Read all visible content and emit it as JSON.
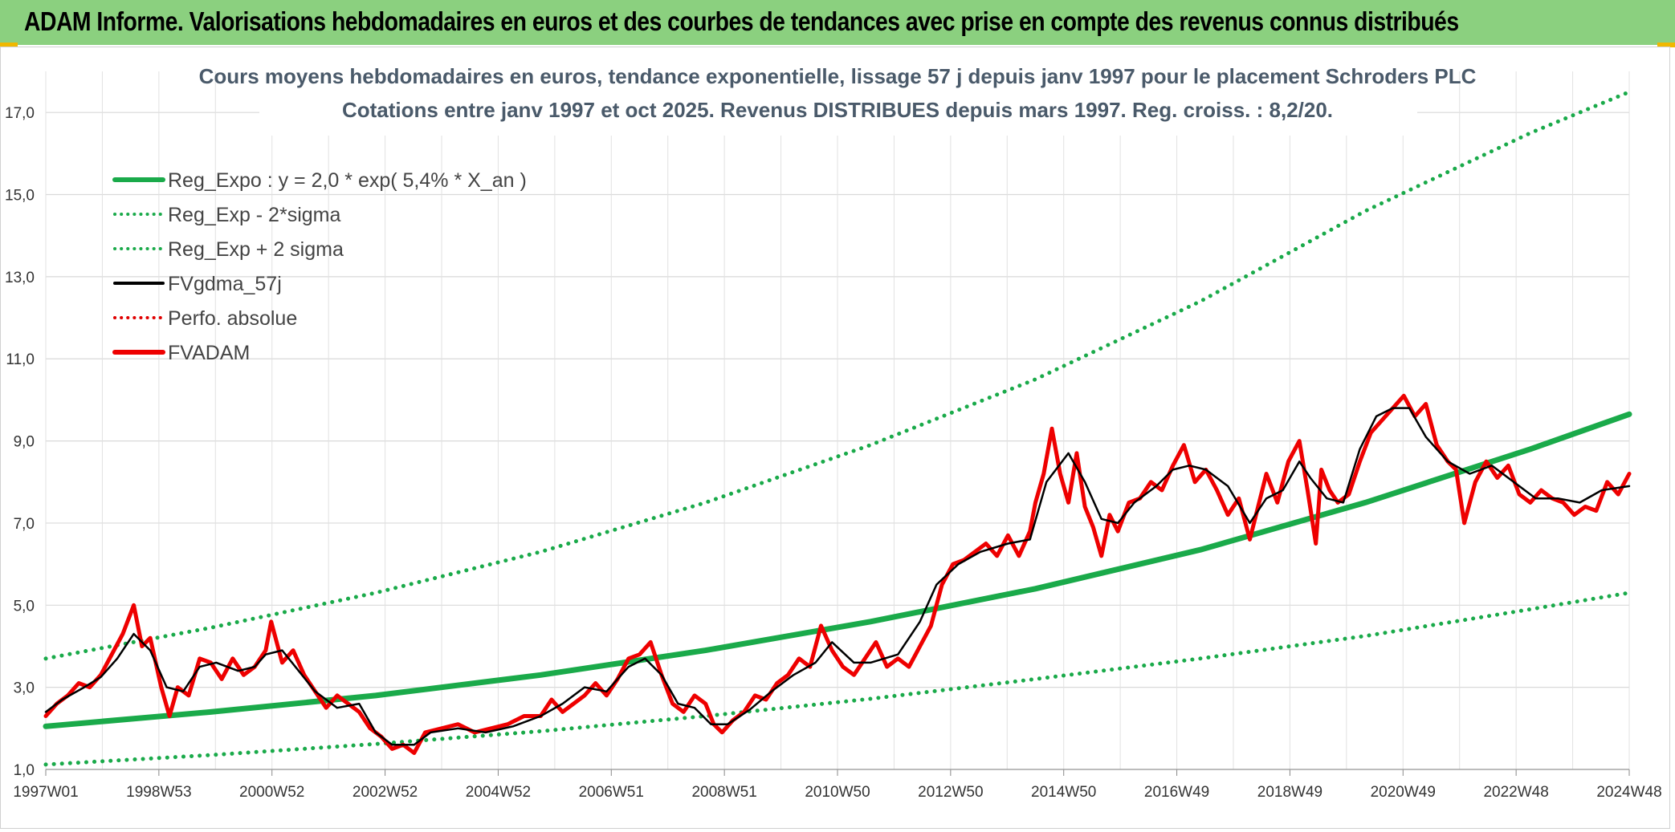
{
  "header": {
    "title": "ADAM Informe. Valorisations hebdomadaires en euros et des courbes de tendances avec prise en compte des revenus connus distribués"
  },
  "chart_data": {
    "type": "line",
    "title_lines": [
      "Cours moyens hebdomadaires en euros, tendance exponentielle, lissage 57 j depuis janv 1997 pour le placement Schroders PLC",
      "Cotations entre janv 1997 et oct 2025. Revenus DISTRIBUES depuis mars 1997. Reg. croiss. : 8,2/20."
    ],
    "x_tick_labels": [
      "1997W01",
      "1998W53",
      "2000W52",
      "2002W52",
      "2004W52",
      "2006W51",
      "2008W51",
      "2010W50",
      "2012W50",
      "2014W50",
      "2016W49",
      "2018W49",
      "2020W49",
      "2022W48",
      "2024W48"
    ],
    "xlim": [
      1997.0,
      2025.8
    ],
    "ylim": [
      1.0,
      18.0
    ],
    "y_ticks": [
      "1,0",
      "3,0",
      "5,0",
      "7,0",
      "9,0",
      "11,0",
      "13,0",
      "15,0",
      "17,0"
    ],
    "y_tick_values": [
      1,
      3,
      5,
      7,
      9,
      11,
      13,
      15,
      17
    ],
    "grid": true,
    "legend_position": "top-left",
    "series": [
      {
        "name": "Reg_Expo : y = 2,0 * exp( 5,4% *  X_an )",
        "style": "solid-thick",
        "color": "#1aaa4a",
        "x": [
          1997.0,
          2000.0,
          2003.0,
          2006.0,
          2009.0,
          2012.0,
          2015.0,
          2018.0,
          2021.0,
          2024.0,
          2025.8
        ],
        "values": [
          2.05,
          2.4,
          2.8,
          3.3,
          3.9,
          4.6,
          5.4,
          6.35,
          7.5,
          8.8,
          9.65
        ]
      },
      {
        "name": "Reg_Exp - 2*sigma",
        "style": "dotted",
        "color": "#1aaa4a",
        "x": [
          1997.0,
          2000.0,
          2003.0,
          2006.0,
          2009.0,
          2012.0,
          2015.0,
          2018.0,
          2021.0,
          2024.0,
          2025.8
        ],
        "values": [
          1.12,
          1.35,
          1.62,
          1.93,
          2.3,
          2.72,
          3.2,
          3.7,
          4.25,
          4.9,
          5.3
        ]
      },
      {
        "name": "Reg_Exp + 2 sigma",
        "style": "dotted",
        "color": "#1aaa4a",
        "x": [
          1997.0,
          2000.0,
          2003.0,
          2006.0,
          2009.0,
          2012.0,
          2015.0,
          2018.0,
          2021.0,
          2024.0,
          2025.8
        ],
        "values": [
          3.7,
          4.45,
          5.3,
          6.3,
          7.5,
          8.9,
          10.5,
          12.4,
          14.6,
          16.5,
          17.5
        ]
      },
      {
        "name": "FVgdma_57j",
        "style": "solid",
        "color": "#000000",
        "x": [
          1997.0,
          1997.3,
          1997.7,
          1998.0,
          1998.3,
          1998.6,
          1998.9,
          1999.2,
          1999.5,
          1999.8,
          2000.1,
          2000.5,
          2000.8,
          2001.0,
          2001.3,
          2001.6,
          2001.9,
          2002.3,
          2002.7,
          2003.0,
          2003.3,
          2003.7,
          2004.0,
          2004.5,
          2005.0,
          2005.5,
          2006.0,
          2006.4,
          2006.8,
          2007.2,
          2007.6,
          2007.9,
          2008.2,
          2008.5,
          2008.8,
          2009.1,
          2009.4,
          2009.8,
          2010.2,
          2010.6,
          2011.0,
          2011.3,
          2011.7,
          2012.0,
          2012.5,
          2012.9,
          2013.2,
          2013.6,
          2014.0,
          2014.5,
          2014.9,
          2015.2,
          2015.6,
          2015.9,
          2016.2,
          2016.5,
          2016.8,
          2017.2,
          2017.5,
          2017.8,
          2018.1,
          2018.5,
          2018.9,
          2019.2,
          2019.5,
          2019.8,
          2020.0,
          2020.3,
          2020.6,
          2020.9,
          2021.2,
          2021.5,
          2021.8,
          2022.1,
          2022.5,
          2022.9,
          2023.3,
          2023.7,
          2024.1,
          2024.5,
          2024.9,
          2025.3,
          2025.8
        ],
        "values": [
          2.4,
          2.7,
          3.0,
          3.25,
          3.7,
          4.3,
          3.9,
          3.0,
          2.9,
          3.5,
          3.6,
          3.4,
          3.5,
          3.8,
          3.9,
          3.4,
          2.9,
          2.5,
          2.6,
          1.9,
          1.6,
          1.6,
          1.9,
          2.0,
          1.9,
          2.05,
          2.3,
          2.6,
          3.0,
          2.9,
          3.5,
          3.7,
          3.3,
          2.6,
          2.5,
          2.1,
          2.1,
          2.45,
          2.9,
          3.3,
          3.6,
          4.1,
          3.6,
          3.6,
          3.8,
          4.6,
          5.5,
          6.0,
          6.3,
          6.5,
          6.6,
          8.0,
          8.7,
          8.0,
          7.1,
          7.0,
          7.5,
          7.9,
          8.3,
          8.4,
          8.3,
          7.9,
          7.0,
          7.6,
          7.8,
          8.5,
          8.1,
          7.6,
          7.5,
          8.8,
          9.6,
          9.8,
          9.8,
          9.1,
          8.5,
          8.2,
          8.4,
          8.0,
          7.6,
          7.6,
          7.5,
          7.8,
          7.9
        ]
      },
      {
        "name": "Perfo. absolue",
        "style": "dotted",
        "color": "#e00000",
        "x": [],
        "values": []
      },
      {
        "name": "FVADAM",
        "style": "solid-thick",
        "color": "#ee0000",
        "x": [
          1997.0,
          1997.2,
          1997.4,
          1997.6,
          1997.8,
          1998.0,
          1998.2,
          1998.4,
          1998.6,
          1998.75,
          1998.9,
          1999.1,
          1999.25,
          1999.4,
          1999.6,
          1999.8,
          2000.0,
          2000.2,
          2000.4,
          2000.6,
          2000.8,
          2001.0,
          2001.1,
          2001.3,
          2001.5,
          2001.7,
          2001.9,
          2002.1,
          2002.3,
          2002.5,
          2002.7,
          2002.9,
          2003.1,
          2003.3,
          2003.5,
          2003.7,
          2003.9,
          2004.2,
          2004.5,
          2004.8,
          2005.1,
          2005.4,
          2005.7,
          2006.0,
          2006.2,
          2006.4,
          2006.6,
          2006.8,
          2007.0,
          2007.2,
          2007.4,
          2007.6,
          2007.8,
          2008.0,
          2008.2,
          2008.4,
          2008.6,
          2008.8,
          2009.0,
          2009.15,
          2009.3,
          2009.5,
          2009.7,
          2009.9,
          2010.1,
          2010.3,
          2010.5,
          2010.7,
          2010.9,
          2011.1,
          2011.3,
          2011.5,
          2011.7,
          2011.9,
          2012.1,
          2012.3,
          2012.5,
          2012.7,
          2012.9,
          2013.1,
          2013.3,
          2013.5,
          2013.7,
          2013.9,
          2014.1,
          2014.3,
          2014.5,
          2014.7,
          2014.9,
          2015.0,
          2015.15,
          2015.3,
          2015.45,
          2015.6,
          2015.75,
          2015.9,
          2016.05,
          2016.2,
          2016.35,
          2016.5,
          2016.7,
          2016.9,
          2017.1,
          2017.3,
          2017.5,
          2017.7,
          2017.9,
          2018.1,
          2018.3,
          2018.5,
          2018.7,
          2018.9,
          2019.05,
          2019.2,
          2019.4,
          2019.6,
          2019.8,
          2019.95,
          2020.1,
          2020.2,
          2020.35,
          2020.5,
          2020.7,
          2020.9,
          2021.1,
          2021.3,
          2021.5,
          2021.7,
          2021.9,
          2022.1,
          2022.3,
          2022.5,
          2022.65,
          2022.8,
          2023.0,
          2023.2,
          2023.4,
          2023.6,
          2023.8,
          2024.0,
          2024.2,
          2024.4,
          2024.6,
          2024.8,
          2025.0,
          2025.2,
          2025.4,
          2025.6,
          2025.8
        ],
        "values": [
          2.3,
          2.6,
          2.8,
          3.1,
          3.0,
          3.3,
          3.8,
          4.3,
          5.0,
          4.0,
          4.2,
          3.0,
          2.3,
          3.0,
          2.8,
          3.7,
          3.6,
          3.2,
          3.7,
          3.3,
          3.5,
          3.9,
          4.6,
          3.6,
          3.9,
          3.3,
          2.9,
          2.5,
          2.8,
          2.6,
          2.4,
          2.0,
          1.8,
          1.5,
          1.6,
          1.4,
          1.9,
          2.0,
          2.1,
          1.9,
          2.0,
          2.1,
          2.3,
          2.3,
          2.7,
          2.4,
          2.6,
          2.8,
          3.1,
          2.8,
          3.2,
          3.7,
          3.8,
          4.1,
          3.3,
          2.6,
          2.4,
          2.8,
          2.6,
          2.1,
          1.9,
          2.2,
          2.4,
          2.8,
          2.7,
          3.1,
          3.3,
          3.7,
          3.5,
          4.5,
          3.9,
          3.5,
          3.3,
          3.7,
          4.1,
          3.5,
          3.7,
          3.5,
          4.0,
          4.5,
          5.5,
          6.0,
          6.1,
          6.3,
          6.5,
          6.2,
          6.7,
          6.2,
          6.8,
          7.5,
          8.2,
          9.3,
          8.2,
          7.5,
          8.7,
          7.4,
          6.9,
          6.2,
          7.2,
          6.8,
          7.5,
          7.6,
          8.0,
          7.8,
          8.4,
          8.9,
          8.0,
          8.3,
          7.8,
          7.2,
          7.6,
          6.6,
          7.4,
          8.2,
          7.5,
          8.5,
          9.0,
          7.8,
          6.5,
          8.3,
          7.8,
          7.5,
          7.7,
          8.5,
          9.2,
          9.5,
          9.8,
          10.1,
          9.6,
          9.9,
          8.9,
          8.5,
          8.3,
          7.0,
          8.0,
          8.5,
          8.1,
          8.4,
          7.7,
          7.5,
          7.8,
          7.6,
          7.5,
          7.2,
          7.4,
          7.3,
          8.0,
          7.7,
          8.2
        ]
      }
    ]
  }
}
